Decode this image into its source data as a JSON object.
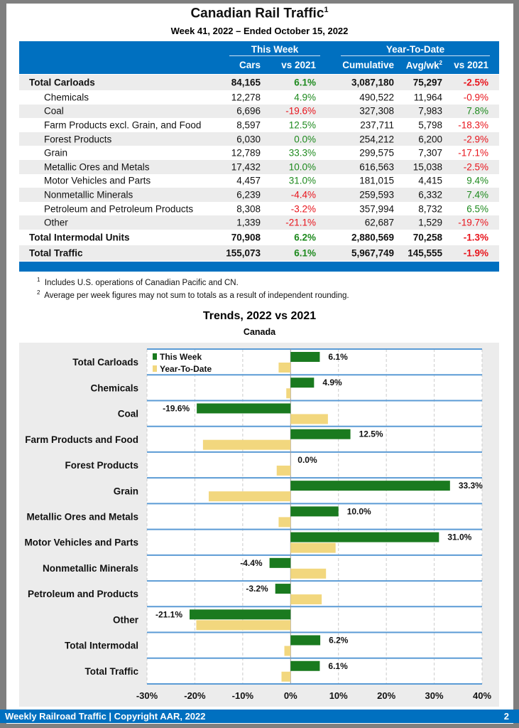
{
  "title": "Canadian Rail Traffic",
  "title_sup": "1",
  "subtitle": "Week 41, 2022 – Ended October 15, 2022",
  "table": {
    "group_this_week": "This Week",
    "group_ytd": "Year-To-Date",
    "col_cars": "Cars",
    "col_vs2021": "vs 2021",
    "col_cumulative": "Cumulative",
    "col_avgwk": "Avg/wk",
    "col_avgwk_sup": "2",
    "col_ytd_vs2021": "vs 2021",
    "rows": [
      {
        "label": "Total Carloads",
        "cars": "84,165",
        "vs": "6.1%",
        "cum": "3,087,180",
        "avg": "75,297",
        "ytdvs": "-2.5%",
        "total": true
      },
      {
        "label": "Chemicals",
        "cars": "12,278",
        "vs": "4.9%",
        "cum": "490,522",
        "avg": "11,964",
        "ytdvs": "-0.9%"
      },
      {
        "label": "Coal",
        "cars": "6,696",
        "vs": "-19.6%",
        "cum": "327,308",
        "avg": "7,983",
        "ytdvs": "7.8%"
      },
      {
        "label": "Farm Products excl. Grain, and Food",
        "cars": "8,597",
        "vs": "12.5%",
        "cum": "237,711",
        "avg": "5,798",
        "ytdvs": "-18.3%"
      },
      {
        "label": "Forest Products",
        "cars": "6,030",
        "vs": "0.0%",
        "cum": "254,212",
        "avg": "6,200",
        "ytdvs": "-2.9%"
      },
      {
        "label": "Grain",
        "cars": "12,789",
        "vs": "33.3%",
        "cum": "299,575",
        "avg": "7,307",
        "ytdvs": "-17.1%"
      },
      {
        "label": "Metallic Ores and Metals",
        "cars": "17,432",
        "vs": "10.0%",
        "cum": "616,563",
        "avg": "15,038",
        "ytdvs": "-2.5%"
      },
      {
        "label": "Motor Vehicles and Parts",
        "cars": "4,457",
        "vs": "31.0%",
        "cum": "181,015",
        "avg": "4,415",
        "ytdvs": "9.4%"
      },
      {
        "label": "Nonmetallic Minerals",
        "cars": "6,239",
        "vs": "-4.4%",
        "cum": "259,593",
        "avg": "6,332",
        "ytdvs": "7.4%"
      },
      {
        "label": "Petroleum and Petroleum Products",
        "cars": "8,308",
        "vs": "-3.2%",
        "cum": "357,994",
        "avg": "8,732",
        "ytdvs": "6.5%"
      },
      {
        "label": "Other",
        "cars": "1,339",
        "vs": "-21.1%",
        "cum": "62,687",
        "avg": "1,529",
        "ytdvs": "-19.7%"
      },
      {
        "label": "Total Intermodal Units",
        "cars": "70,908",
        "vs": "6.2%",
        "cum": "2,880,569",
        "avg": "70,258",
        "ytdvs": "-1.3%",
        "total": true
      },
      {
        "label": "Total Traffic",
        "cars": "155,073",
        "vs": "6.1%",
        "cum": "5,967,749",
        "avg": "145,555",
        "ytdvs": "-1.9%",
        "total": true
      }
    ]
  },
  "footnotes": [
    {
      "mark": "1",
      "text": "Includes U.S. operations of Canadian Pacific and CN."
    },
    {
      "mark": "2",
      "text": "Average per week figures may not sum to totals as a result of independent rounding."
    }
  ],
  "colors": {
    "brand_blue": "#0070c0",
    "positive": "#1e8a1e",
    "negative": "#e8141c",
    "this_week": "#1a7a1f",
    "ytd": "#f2d77e"
  },
  "chart_data": {
    "type": "bar",
    "orientation": "horizontal",
    "title": "Trends, 2022 vs 2021",
    "subtitle": "Canada",
    "categories": [
      "Total Carloads",
      "Chemicals",
      "Coal",
      "Farm Products and Food",
      "Forest Products",
      "Grain",
      "Metallic Ores and Metals",
      "Motor Vehicles and Parts",
      "Nonmetallic Minerals",
      "Petroleum and Products",
      "Other",
      "Total Intermodal",
      "Total Traffic"
    ],
    "series": [
      {
        "name": "This Week",
        "values": [
          6.1,
          4.9,
          -19.6,
          12.5,
          0.0,
          33.3,
          10.0,
          31.0,
          -4.4,
          -3.2,
          -21.1,
          6.2,
          6.1
        ],
        "labels": [
          "6.1%",
          "4.9%",
          "-19.6%",
          "12.5%",
          "0.0%",
          "33.3%",
          "10.0%",
          "31.0%",
          "-4.4%",
          "-3.2%",
          "-21.1%",
          "6.2%",
          "6.1%"
        ]
      },
      {
        "name": "Year-To-Date",
        "values": [
          -2.5,
          -0.9,
          7.8,
          -18.3,
          -2.9,
          -17.1,
          -2.5,
          9.4,
          7.4,
          6.5,
          -19.7,
          -1.3,
          -1.9
        ]
      }
    ],
    "xlim": [
      -30,
      40
    ],
    "xticks": [
      "-30%",
      "-20%",
      "-10%",
      "0%",
      "10%",
      "20%",
      "30%",
      "40%"
    ],
    "grid": true,
    "legend": "top-left"
  },
  "footer": {
    "left": "Weekly Railroad Traffic | Copyright AAR, 2022",
    "page": "2"
  }
}
